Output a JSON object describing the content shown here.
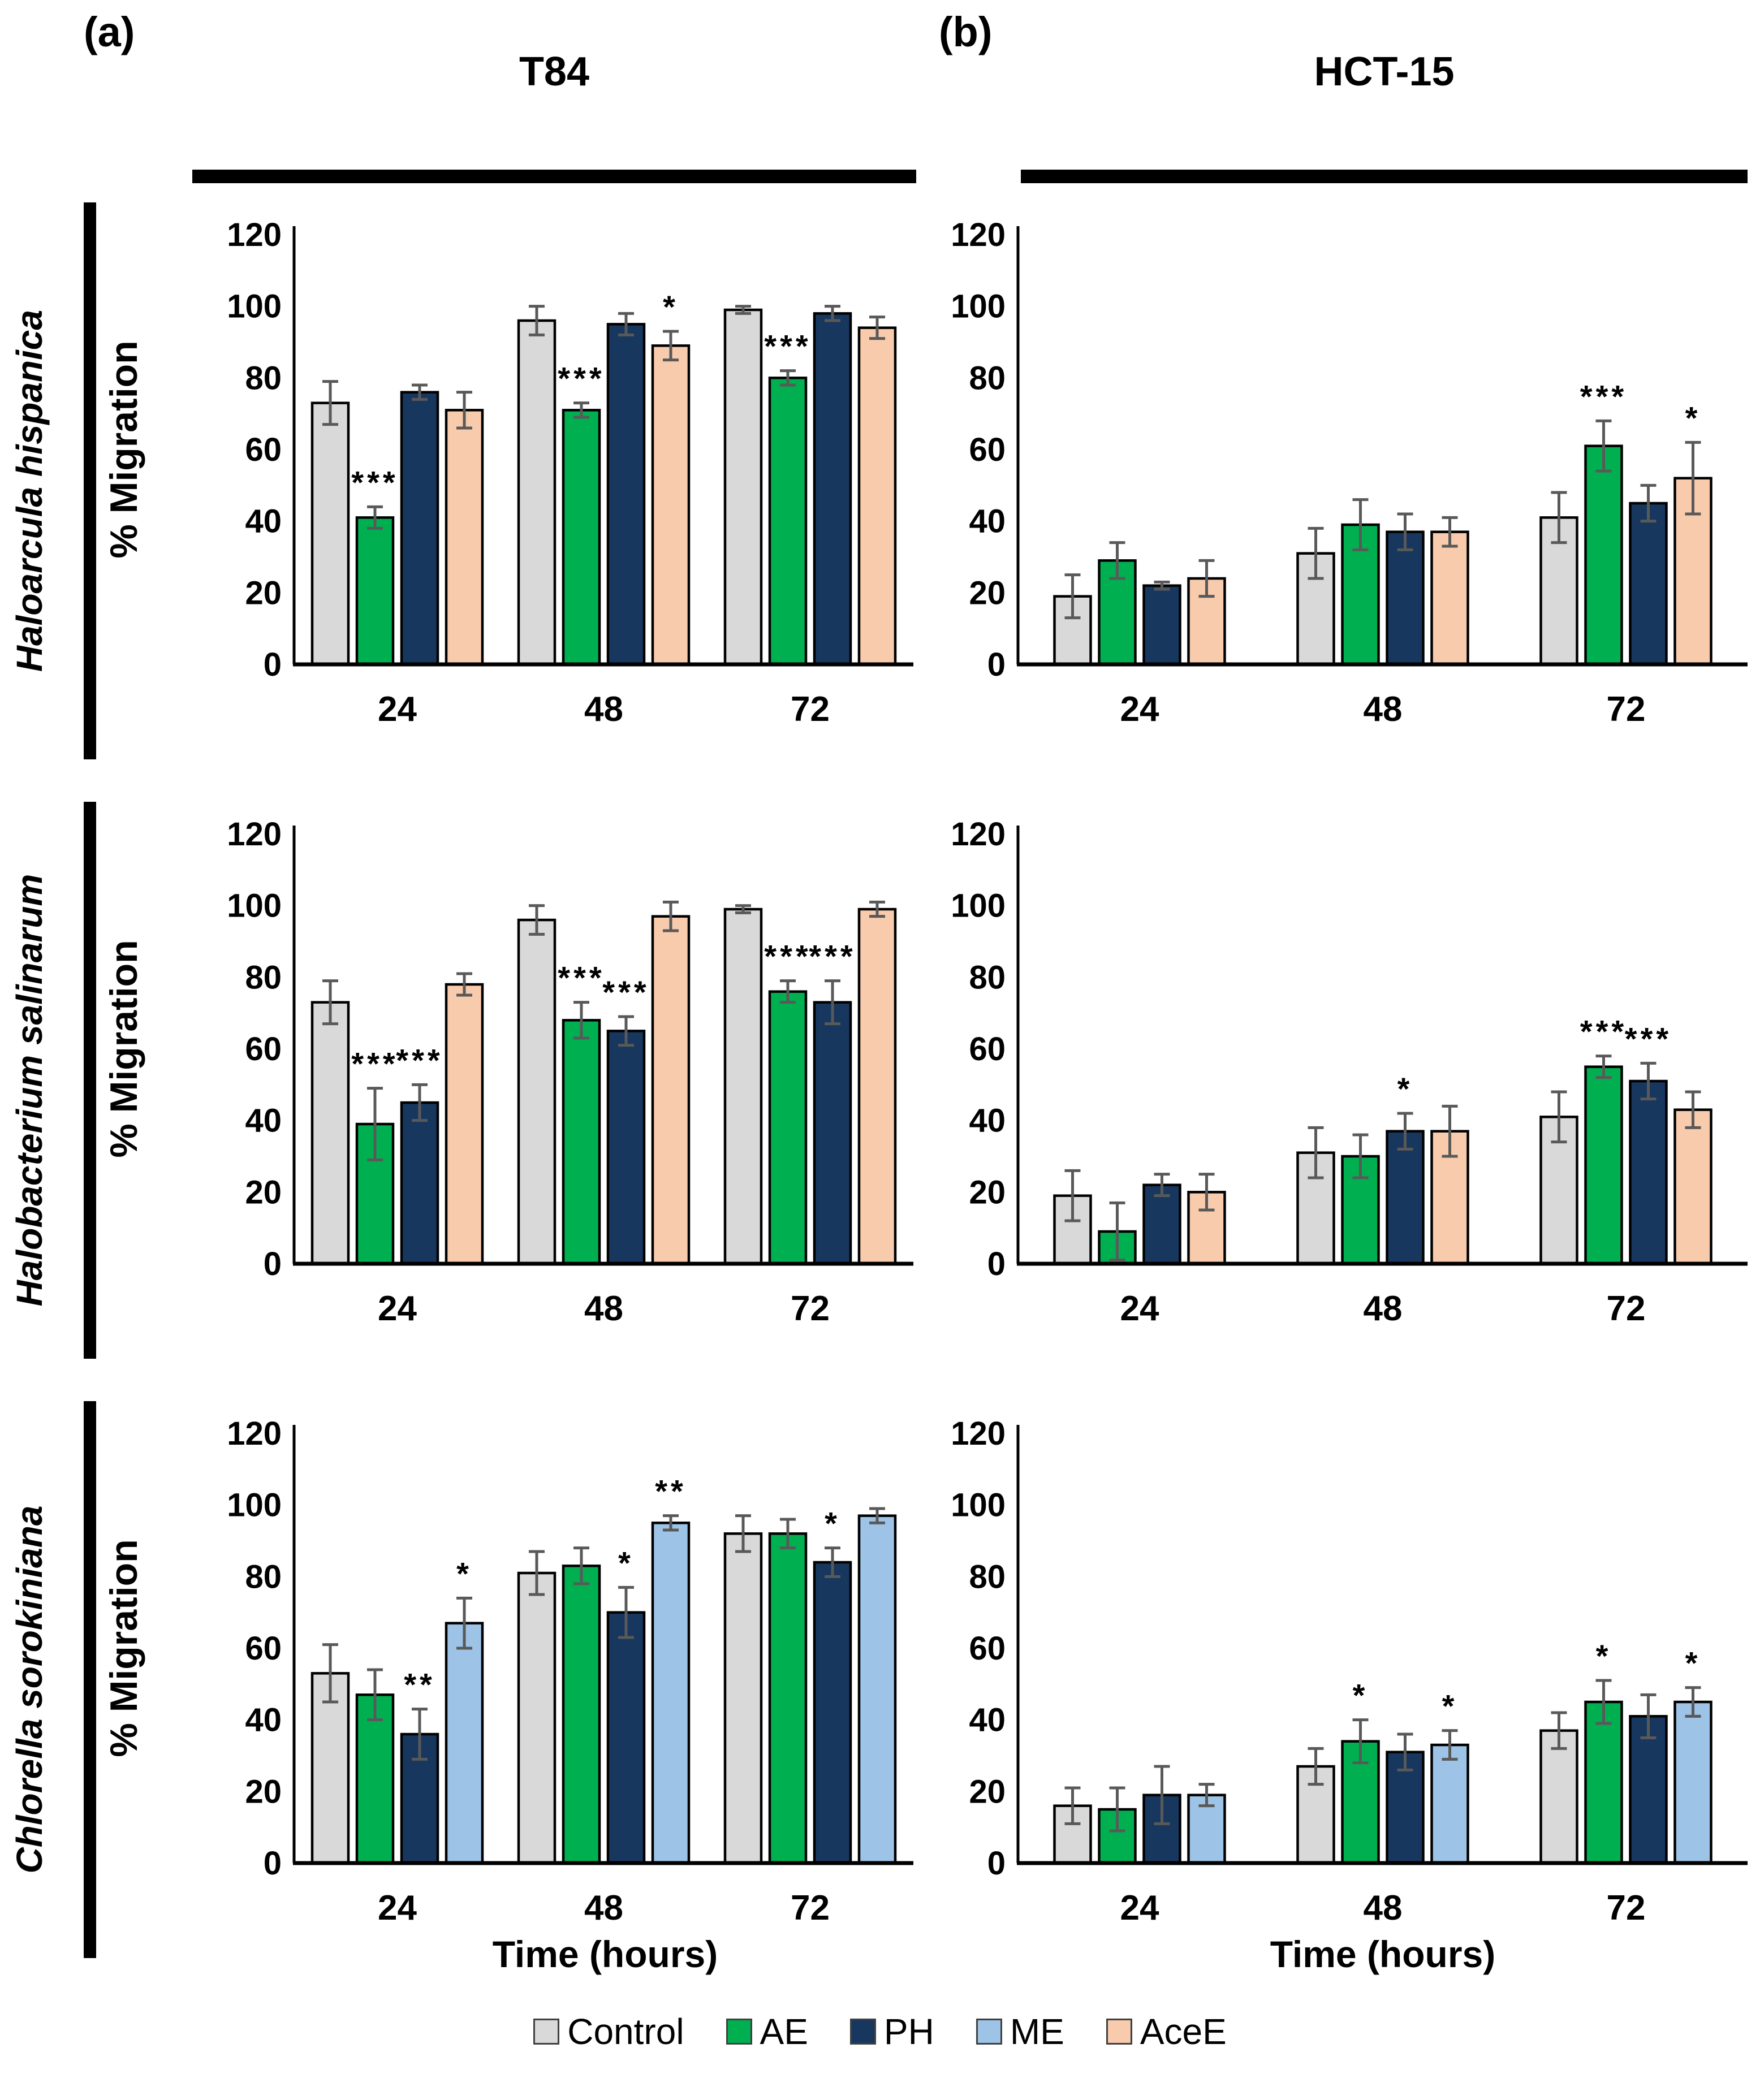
{
  "header": {
    "panel_a_letter": "(a)",
    "panel_b_letter": "(b)",
    "col_a_title": "T84",
    "col_b_title": "HCT-15"
  },
  "rows": [
    {
      "label": "Haloarcula hispanica"
    },
    {
      "label": "Halobacterium salinarum"
    },
    {
      "label": "Chlorella sorokiniana"
    }
  ],
  "axis": {
    "ylabel": "% Migration",
    "xlabel": "Time (hours)",
    "categories": [
      "24",
      "48",
      "72"
    ],
    "yticks": [
      0,
      20,
      40,
      60,
      80,
      100,
      120
    ],
    "ylim": [
      0,
      120
    ]
  },
  "legend": {
    "items": [
      {
        "label": "Control",
        "color": "#d9d9d9"
      },
      {
        "label": "AE",
        "color": "#00b050"
      },
      {
        "label": "PH",
        "color": "#17375e"
      },
      {
        "label": "ME",
        "color": "#9dc3e6"
      },
      {
        "label": "AceE",
        "color": "#f8cbad"
      }
    ]
  },
  "chart_data": [
    {
      "type": "bar",
      "cell_line": "T84",
      "organism": "Haloarcula hispanica",
      "categories": [
        "24",
        "48",
        "72"
      ],
      "ylim": [
        0,
        120
      ],
      "series": [
        {
          "name": "Control",
          "values": [
            73,
            96,
            99
          ],
          "errors": [
            6,
            4,
            1
          ],
          "sig": [
            "",
            "",
            ""
          ]
        },
        {
          "name": "AE",
          "values": [
            41,
            71,
            80
          ],
          "errors": [
            3,
            2,
            2
          ],
          "sig": [
            "***",
            "***",
            "***"
          ]
        },
        {
          "name": "PH",
          "values": [
            76,
            95,
            98
          ],
          "errors": [
            2,
            3,
            2
          ],
          "sig": [
            "",
            "",
            ""
          ]
        },
        {
          "name": "AceE",
          "values": [
            71,
            89,
            94
          ],
          "errors": [
            5,
            4,
            3
          ],
          "sig": [
            "",
            "*",
            ""
          ]
        }
      ]
    },
    {
      "type": "bar",
      "cell_line": "HCT-15",
      "organism": "Haloarcula hispanica",
      "categories": [
        "24",
        "48",
        "72"
      ],
      "ylim": [
        0,
        120
      ],
      "series": [
        {
          "name": "Control",
          "values": [
            19,
            31,
            41
          ],
          "errors": [
            6,
            7,
            7
          ],
          "sig": [
            "",
            "",
            ""
          ]
        },
        {
          "name": "AE",
          "values": [
            29,
            39,
            61
          ],
          "errors": [
            5,
            7,
            7
          ],
          "sig": [
            "",
            "",
            "***"
          ]
        },
        {
          "name": "PH",
          "values": [
            22,
            37,
            45
          ],
          "errors": [
            1,
            5,
            5
          ],
          "sig": [
            "",
            "",
            ""
          ]
        },
        {
          "name": "AceE",
          "values": [
            24,
            37,
            52
          ],
          "errors": [
            5,
            4,
            10
          ],
          "sig": [
            "",
            "",
            "*"
          ]
        }
      ]
    },
    {
      "type": "bar",
      "cell_line": "T84",
      "organism": "Halobacterium salinarum",
      "categories": [
        "24",
        "48",
        "72"
      ],
      "ylim": [
        0,
        120
      ],
      "series": [
        {
          "name": "Control",
          "values": [
            73,
            96,
            99
          ],
          "errors": [
            6,
            4,
            1
          ],
          "sig": [
            "",
            "",
            ""
          ]
        },
        {
          "name": "AE",
          "values": [
            39,
            68,
            76
          ],
          "errors": [
            10,
            5,
            3
          ],
          "sig": [
            "***",
            "***",
            "***"
          ]
        },
        {
          "name": "PH",
          "values": [
            45,
            65,
            73
          ],
          "errors": [
            5,
            4,
            6
          ],
          "sig": [
            "***",
            "***",
            "***"
          ]
        },
        {
          "name": "AceE",
          "values": [
            78,
            97,
            99
          ],
          "errors": [
            3,
            4,
            2
          ],
          "sig": [
            "",
            "",
            ""
          ]
        }
      ]
    },
    {
      "type": "bar",
      "cell_line": "HCT-15",
      "organism": "Halobacterium salinarum",
      "categories": [
        "24",
        "48",
        "72"
      ],
      "ylim": [
        0,
        120
      ],
      "series": [
        {
          "name": "Control",
          "values": [
            19,
            31,
            41
          ],
          "errors": [
            7,
            7,
            7
          ],
          "sig": [
            "",
            "",
            ""
          ]
        },
        {
          "name": "AE",
          "values": [
            9,
            30,
            55
          ],
          "errors": [
            8,
            6,
            3
          ],
          "sig": [
            "",
            "",
            "***"
          ]
        },
        {
          "name": "PH",
          "values": [
            22,
            37,
            51
          ],
          "errors": [
            3,
            5,
            5
          ],
          "sig": [
            "",
            "*",
            "***"
          ]
        },
        {
          "name": "AceE",
          "values": [
            20,
            37,
            43
          ],
          "errors": [
            5,
            7,
            5
          ],
          "sig": [
            "",
            "",
            ""
          ]
        }
      ]
    },
    {
      "type": "bar",
      "cell_line": "T84",
      "organism": "Chlorella sorokiniana",
      "categories": [
        "24",
        "48",
        "72"
      ],
      "ylim": [
        0,
        120
      ],
      "series": [
        {
          "name": "Control",
          "values": [
            53,
            81,
            92
          ],
          "errors": [
            8,
            6,
            5
          ],
          "sig": [
            "",
            "",
            ""
          ]
        },
        {
          "name": "AE",
          "values": [
            47,
            83,
            92
          ],
          "errors": [
            7,
            5,
            4
          ],
          "sig": [
            "",
            "",
            ""
          ]
        },
        {
          "name": "PH",
          "values": [
            36,
            70,
            84
          ],
          "errors": [
            7,
            7,
            4
          ],
          "sig": [
            "**",
            "*",
            "*"
          ]
        },
        {
          "name": "ME",
          "values": [
            67,
            95,
            97
          ],
          "errors": [
            7,
            2,
            2
          ],
          "sig": [
            "*",
            "**",
            ""
          ]
        }
      ]
    },
    {
      "type": "bar",
      "cell_line": "HCT-15",
      "organism": "Chlorella sorokiniana",
      "categories": [
        "24",
        "48",
        "72"
      ],
      "ylim": [
        0,
        120
      ],
      "series": [
        {
          "name": "Control",
          "values": [
            16,
            27,
            37
          ],
          "errors": [
            5,
            5,
            5
          ],
          "sig": [
            "",
            "",
            ""
          ]
        },
        {
          "name": "AE",
          "values": [
            15,
            34,
            45
          ],
          "errors": [
            6,
            6,
            6
          ],
          "sig": [
            "",
            "*",
            "*"
          ]
        },
        {
          "name": "PH",
          "values": [
            19,
            31,
            41
          ],
          "errors": [
            8,
            5,
            6
          ],
          "sig": [
            "",
            "",
            ""
          ]
        },
        {
          "name": "ME",
          "values": [
            19,
            33,
            45
          ],
          "errors": [
            3,
            4,
            4
          ],
          "sig": [
            "",
            "*",
            "*"
          ]
        }
      ]
    }
  ]
}
